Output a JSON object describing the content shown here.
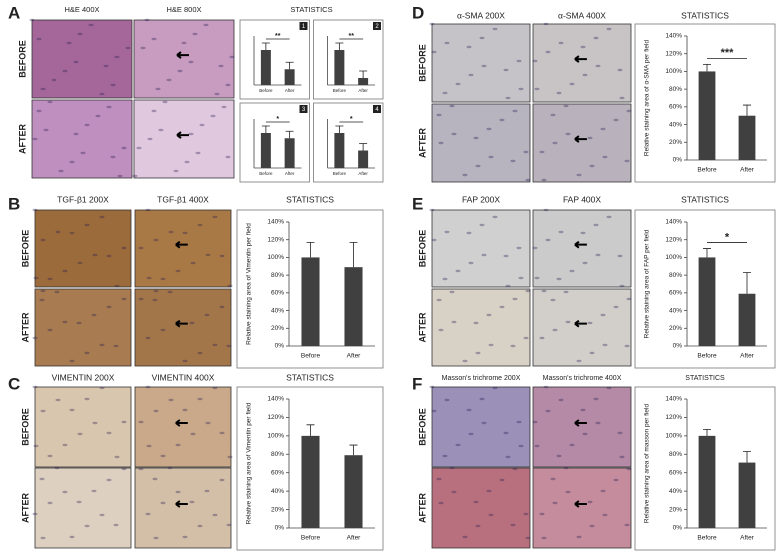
{
  "panels": [
    {
      "letter": "A",
      "headers": [
        "H&E 400X",
        "H&E 800X",
        "STATISTICS"
      ],
      "rows": [
        "BEFORE",
        "AFTER"
      ]
    },
    {
      "letter": "B",
      "headers": [
        "TGF-β1 200X",
        "TGF-β1 400X",
        "STATISTICS"
      ],
      "rows": [
        "BEFORE",
        "AFTER"
      ]
    },
    {
      "letter": "C",
      "headers": [
        "VIMENTIN 200X",
        "VIMENTIN 400X",
        "STATISTICS"
      ],
      "rows": [
        "BEFORE",
        "AFTER"
      ]
    },
    {
      "letter": "D",
      "headers": [
        "α-SMA 200X",
        "α-SMA 400X",
        "STATISTICS"
      ],
      "rows": [
        "BEFORE",
        "AFTER"
      ]
    },
    {
      "letter": "E",
      "headers": [
        "FAP 200X",
        "FAP 400X",
        "STATISTICS"
      ],
      "rows": [
        "BEFORE",
        "AFTER"
      ]
    },
    {
      "letter": "F",
      "headers": [
        "Masson's trichrome 200X",
        "Masson's trichrome 400X",
        "STATISTICS"
      ],
      "rows": [
        "BEFORE",
        "AFTER"
      ]
    }
  ],
  "chart_data": [
    {
      "type": "bar",
      "label": "1",
      "categories": [
        "Before",
        "After"
      ],
      "values": [
        100,
        45
      ],
      "errors": [
        20,
        20
      ],
      "significance": "**",
      "color": "#404040",
      "ylim": [
        0,
        140
      ]
    },
    {
      "type": "bar",
      "label": "2",
      "categories": [
        "Before",
        "After"
      ],
      "values": [
        100,
        20
      ],
      "errors": [
        20,
        20
      ],
      "significance": "**",
      "color": "#404040",
      "ylim": [
        0,
        140
      ]
    },
    {
      "type": "bar",
      "label": "3",
      "categories": [
        "Before",
        "After"
      ],
      "values": [
        100,
        85
      ],
      "errors": [
        20,
        20
      ],
      "significance": "*",
      "color": "#404040",
      "ylim": [
        0,
        140
      ]
    },
    {
      "type": "bar",
      "label": "4",
      "categories": [
        "Before",
        "After"
      ],
      "values": [
        100,
        50
      ],
      "errors": [
        20,
        20
      ],
      "significance": "*",
      "color": "#404040",
      "ylim": [
        0,
        140
      ]
    },
    {
      "type": "bar",
      "y_label": "Relative staining area of Vimentin per field",
      "categories": [
        "Before",
        "After"
      ],
      "values": [
        100,
        89
      ],
      "errors": [
        17,
        28
      ],
      "color": "#404040",
      "ylim": [
        0,
        140
      ],
      "yticks": [
        {
          "value": 0,
          "label": "0%"
        },
        {
          "value": 20,
          "label": "20%"
        },
        {
          "value": 40,
          "label": "40%"
        },
        {
          "value": 60,
          "label": "60%"
        },
        {
          "value": 80,
          "label": "80%"
        },
        {
          "value": 100,
          "label": "100%"
        },
        {
          "value": 120,
          "label": "120%"
        },
        {
          "value": 140,
          "label": "140%"
        }
      ]
    },
    {
      "type": "bar",
      "y_label": "Relative staining area of Vimentin per field",
      "categories": [
        "Before",
        "After"
      ],
      "values": [
        100,
        79
      ],
      "errors": [
        12,
        11
      ],
      "color": "#404040",
      "ylim": [
        0,
        140
      ],
      "yticks": [
        {
          "value": 0,
          "label": "0%"
        },
        {
          "value": 20,
          "label": "20%"
        },
        {
          "value": 40,
          "label": "40%"
        },
        {
          "value": 60,
          "label": "60%"
        },
        {
          "value": 80,
          "label": "80%"
        },
        {
          "value": 100,
          "label": "100%"
        },
        {
          "value": 120,
          "label": "120%"
        },
        {
          "value": 140,
          "label": "140%"
        }
      ]
    },
    {
      "type": "bar",
      "y_label": "Relative staining area of α-SMA per field",
      "categories": [
        "Before",
        "After"
      ],
      "values": [
        100,
        50
      ],
      "errors": [
        8,
        12
      ],
      "significance": "***",
      "color": "#404040",
      "ylim": [
        0,
        140
      ],
      "yticks": [
        {
          "value": 0,
          "label": "0%"
        },
        {
          "value": 20,
          "label": "20%"
        },
        {
          "value": 40,
          "label": "40%"
        },
        {
          "value": 60,
          "label": "60%"
        },
        {
          "value": 80,
          "label": "80%"
        },
        {
          "value": 100,
          "label": "100%"
        },
        {
          "value": 120,
          "label": "120%"
        },
        {
          "value": 140,
          "label": "140%"
        }
      ]
    },
    {
      "type": "bar",
      "y_label": "Relative staining area of FAP per field",
      "categories": [
        "Before",
        "After"
      ],
      "values": [
        100,
        59
      ],
      "errors": [
        10,
        24
      ],
      "significance": "*",
      "color": "#404040",
      "ylim": [
        0,
        140
      ],
      "yticks": [
        {
          "value": 0,
          "label": "0%"
        },
        {
          "value": 20,
          "label": "20%"
        },
        {
          "value": 40,
          "label": "40%"
        },
        {
          "value": 60,
          "label": "60%"
        },
        {
          "value": 80,
          "label": "80%"
        },
        {
          "value": 100,
          "label": "100%"
        },
        {
          "value": 120,
          "label": "120%"
        },
        {
          "value": 140,
          "label": "140%"
        }
      ]
    },
    {
      "type": "bar",
      "y_label": "Relative staining area of masson per field",
      "categories": [
        "Before",
        "After"
      ],
      "values": [
        100,
        71
      ],
      "errors": [
        7,
        12
      ],
      "color": "#404040",
      "ylim": [
        0,
        140
      ],
      "yticks": [
        {
          "value": 0,
          "label": "0%"
        },
        {
          "value": 20,
          "label": "20%"
        },
        {
          "value": 40,
          "label": "40%"
        },
        {
          "value": 60,
          "label": "60%"
        },
        {
          "value": 80,
          "label": "80%"
        },
        {
          "value": 100,
          "label": "100%"
        },
        {
          "value": 120,
          "label": "120%"
        },
        {
          "value": 140,
          "label": "140%"
        }
      ]
    }
  ]
}
